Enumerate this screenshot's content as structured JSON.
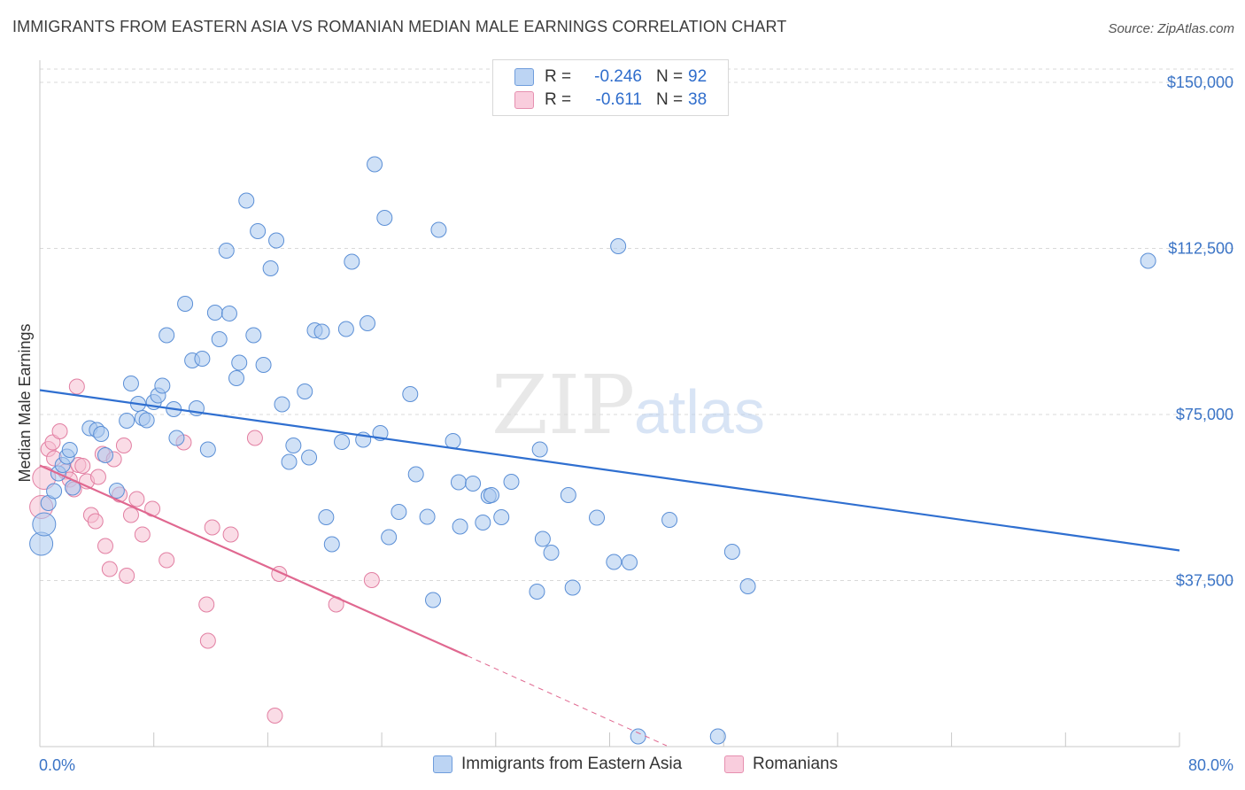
{
  "title": "IMMIGRANTS FROM EASTERN ASIA VS ROMANIAN MEDIAN MALE EARNINGS CORRELATION CHART",
  "source": "Source: ZipAtlas.com",
  "watermark": {
    "zip": "ZIP",
    "atlas": "atlas"
  },
  "colors": {
    "blue_fill": "#a9c8ef",
    "blue_stroke": "#5b8fd6",
    "blue_line": "#2f6fd0",
    "pink_fill": "#f6bfd2",
    "pink_stroke": "#e27fa2",
    "pink_line": "#e06890",
    "axis_text": "#3b74c6",
    "grid": "#d9d9d9"
  },
  "legend": {
    "rows": [
      {
        "r_label": "R =",
        "r_value": "-0.246",
        "n_label": "N =",
        "n_value": "92"
      },
      {
        "r_label": "R =",
        "r_value": "-0.611",
        "n_label": "N =",
        "n_value": "38"
      }
    ]
  },
  "bottom_legend": [
    "Immigrants from Eastern Asia",
    "Romanians"
  ],
  "chart_data": {
    "type": "scatter",
    "title": "IMMIGRANTS FROM EASTERN ASIA VS ROMANIAN MEDIAN MALE EARNINGS CORRELATION CHART",
    "xlabel": "",
    "ylabel": "Median Male Earnings",
    "xlim": [
      0,
      80
    ],
    "ylim": [
      0,
      153000
    ],
    "x_tick_labels": [
      "0.0%",
      "80.0%"
    ],
    "y_ticks": [
      37500,
      75000,
      112500,
      150000
    ],
    "y_tick_labels": [
      "$37,500",
      "$75,000",
      "$112,500",
      "$150,000"
    ],
    "grid": true,
    "legend_position": "top-center",
    "series": [
      {
        "name": "Immigrants from Eastern Asia",
        "color": "#a9c8ef",
        "points": [
          [
            0.1,
            45800
          ],
          [
            0.3,
            50200
          ],
          [
            0.6,
            55000
          ],
          [
            1.0,
            57700
          ],
          [
            1.3,
            61700
          ],
          [
            1.6,
            63600
          ],
          [
            1.9,
            65500
          ],
          [
            2.1,
            67000
          ],
          [
            2.3,
            58500
          ],
          [
            3.5,
            71900
          ],
          [
            4.0,
            71500
          ],
          [
            4.3,
            70600
          ],
          [
            4.6,
            65800
          ],
          [
            5.4,
            57800
          ],
          [
            6.1,
            73600
          ],
          [
            6.4,
            82000
          ],
          [
            6.9,
            77400
          ],
          [
            7.2,
            74200
          ],
          [
            7.5,
            73700
          ],
          [
            8.0,
            77800
          ],
          [
            8.3,
            79300
          ],
          [
            8.6,
            81500
          ],
          [
            8.9,
            92900
          ],
          [
            9.4,
            76200
          ],
          [
            9.6,
            69700
          ],
          [
            10.2,
            100000
          ],
          [
            10.7,
            87200
          ],
          [
            11.0,
            76400
          ],
          [
            11.4,
            87600
          ],
          [
            11.8,
            67100
          ],
          [
            12.3,
            98000
          ],
          [
            12.6,
            92000
          ],
          [
            13.1,
            112000
          ],
          [
            13.3,
            97800
          ],
          [
            13.8,
            83200
          ],
          [
            14.0,
            86700
          ],
          [
            14.5,
            123300
          ],
          [
            15.0,
            92900
          ],
          [
            15.3,
            116400
          ],
          [
            15.7,
            86200
          ],
          [
            16.2,
            108000
          ],
          [
            16.6,
            114300
          ],
          [
            17.0,
            77300
          ],
          [
            17.5,
            64300
          ],
          [
            17.8,
            68000
          ],
          [
            18.6,
            80200
          ],
          [
            18.9,
            65300
          ],
          [
            19.3,
            94000
          ],
          [
            19.8,
            93700
          ],
          [
            20.1,
            51800
          ],
          [
            20.5,
            45700
          ],
          [
            21.2,
            68800
          ],
          [
            21.5,
            94300
          ],
          [
            21.9,
            109500
          ],
          [
            22.7,
            69300
          ],
          [
            23.0,
            95600
          ],
          [
            23.5,
            131500
          ],
          [
            23.9,
            70800
          ],
          [
            24.2,
            119400
          ],
          [
            24.5,
            47300
          ],
          [
            25.2,
            53000
          ],
          [
            26.0,
            79600
          ],
          [
            26.4,
            61500
          ],
          [
            27.2,
            51900
          ],
          [
            27.6,
            33100
          ],
          [
            28.0,
            116700
          ],
          [
            29.0,
            69000
          ],
          [
            29.5,
            49700
          ],
          [
            29.4,
            59700
          ],
          [
            30.4,
            59400
          ],
          [
            31.1,
            50600
          ],
          [
            31.5,
            56600
          ],
          [
            31.7,
            56800
          ],
          [
            32.4,
            51800
          ],
          [
            33.1,
            59800
          ],
          [
            34.9,
            35000
          ],
          [
            35.1,
            67100
          ],
          [
            35.3,
            46900
          ],
          [
            35.9,
            43800
          ],
          [
            37.1,
            56800
          ],
          [
            37.4,
            35900
          ],
          [
            39.1,
            51700
          ],
          [
            40.3,
            41700
          ],
          [
            40.6,
            113000
          ],
          [
            41.4,
            41600
          ],
          [
            42.0,
            2300
          ],
          [
            44.2,
            51200
          ],
          [
            47.6,
            2300
          ],
          [
            48.6,
            44000
          ],
          [
            49.7,
            36200
          ],
          [
            77.8,
            109700
          ]
        ]
      },
      {
        "name": "Romanians",
        "color": "#f6bfd2",
        "points": [
          [
            0.1,
            54100
          ],
          [
            0.3,
            60700
          ],
          [
            0.6,
            67200
          ],
          [
            0.9,
            68700
          ],
          [
            1.0,
            65100
          ],
          [
            1.4,
            71200
          ],
          [
            1.8,
            62100
          ],
          [
            2.1,
            60300
          ],
          [
            2.4,
            58100
          ],
          [
            2.6,
            81300
          ],
          [
            2.7,
            63600
          ],
          [
            3.0,
            63400
          ],
          [
            3.3,
            59900
          ],
          [
            3.6,
            52300
          ],
          [
            3.9,
            50900
          ],
          [
            4.1,
            60900
          ],
          [
            4.4,
            66100
          ],
          [
            4.6,
            45300
          ],
          [
            4.9,
            40100
          ],
          [
            5.2,
            64900
          ],
          [
            5.6,
            56900
          ],
          [
            5.9,
            68000
          ],
          [
            6.1,
            38600
          ],
          [
            6.4,
            52300
          ],
          [
            6.8,
            55900
          ],
          [
            7.2,
            47900
          ],
          [
            7.9,
            53700
          ],
          [
            8.9,
            42100
          ],
          [
            10.1,
            68700
          ],
          [
            11.7,
            32100
          ],
          [
            11.8,
            23900
          ],
          [
            12.1,
            49500
          ],
          [
            13.4,
            47900
          ],
          [
            15.1,
            69700
          ],
          [
            16.5,
            7000
          ],
          [
            16.8,
            39000
          ],
          [
            20.8,
            32100
          ],
          [
            23.3,
            37600
          ]
        ]
      }
    ],
    "trend_lines": [
      {
        "series": "Immigrants from Eastern Asia",
        "x_start": 0,
        "y_start": 80500,
        "x_end": 80,
        "y_end": 44300,
        "style": "solid"
      },
      {
        "series": "Romanians",
        "x_start": 0,
        "y_start": 63500,
        "x_end": 30,
        "y_end": 20500,
        "style": "solid"
      },
      {
        "series": "Romanians",
        "x_start": 30,
        "y_start": 20500,
        "x_end": 44,
        "y_end": 200,
        "style": "dashed"
      }
    ]
  }
}
